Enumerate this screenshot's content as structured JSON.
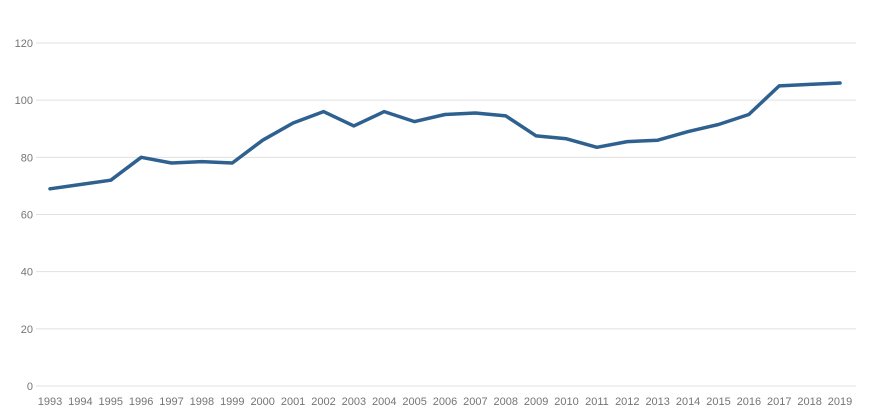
{
  "chart": {
    "title": "",
    "background_color": "#ffffff",
    "series_color": "#2e618f",
    "gridline_color": "#e0e0e0",
    "label_color": "#757575"
  },
  "chart_data": {
    "type": "line",
    "title": "",
    "xlabel": "",
    "ylabel": "",
    "x": [
      1993,
      1994,
      1995,
      1996,
      1997,
      1998,
      1999,
      2000,
      2001,
      2002,
      2003,
      2004,
      2005,
      2006,
      2007,
      2008,
      2009,
      2010,
      2011,
      2012,
      2013,
      2014,
      2015,
      2016,
      2017,
      2018,
      2019
    ],
    "values": [
      69,
      70.5,
      72,
      80,
      78,
      78.5,
      78,
      86,
      92,
      96,
      91,
      96,
      92.5,
      95,
      95.5,
      94.5,
      87.5,
      86.5,
      83.5,
      85.5,
      86,
      89,
      91.5,
      95,
      105,
      105.5,
      106
    ],
    "ylim": [
      0,
      120
    ],
    "yticks": [
      0,
      20,
      40,
      60,
      80,
      100,
      120
    ],
    "grid": true,
    "legend_position": "none",
    "series": [
      {
        "name": "series-1",
        "color": "#2e618f"
      }
    ]
  }
}
